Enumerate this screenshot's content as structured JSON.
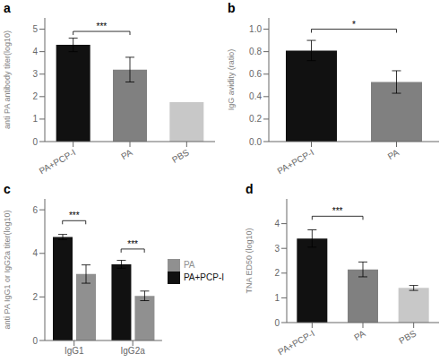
{
  "chart_data": [
    {
      "type": "bar",
      "title": "a",
      "categories": [
        "PA+PCP-I",
        "PA",
        "PBS"
      ],
      "values": [
        4.3,
        3.2,
        1.75
      ],
      "errors": [
        0.3,
        0.55,
        0.0
      ],
      "colors": [
        "#111111",
        "#808080",
        "#c8c8c8"
      ],
      "ylabel": "anti PA antibody titer(log10)",
      "ylim": [
        0,
        5.5
      ],
      "yticks": [
        0,
        1,
        2,
        3,
        4,
        5
      ],
      "annotations": [
        {
          "text": "***",
          "x": [
            "PA+PCP-I",
            "PA"
          ],
          "y": 4.9
        }
      ]
    },
    {
      "type": "bar",
      "title": "b",
      "categories": [
        "PA+PCP-I",
        "PA"
      ],
      "values": [
        0.81,
        0.53
      ],
      "errors": [
        0.09,
        0.1
      ],
      "colors": [
        "#111111",
        "#808080"
      ],
      "ylabel": "IgG avidity (ratio)",
      "ylim": [
        0,
        1.1
      ],
      "yticks": [
        {
          "value": 0,
          "label": "0.0"
        },
        0.2,
        0.4,
        0.6,
        0.8,
        {
          "value": 1,
          "label": "1.0"
        }
      ],
      "annotations": [
        {
          "text": "*",
          "x": [
            "PA+PCP-I",
            "PA"
          ],
          "y": 1.0
        }
      ]
    },
    {
      "type": "bar",
      "title": "c",
      "categories": [
        "IgG1",
        "IgG2a"
      ],
      "series": [
        {
          "name": "PA+PCP-I",
          "color": "#111111",
          "values": [
            4.75,
            3.5
          ],
          "errors": [
            0.12,
            0.18
          ]
        },
        {
          "name": "PA",
          "color": "#909090",
          "values": [
            3.05,
            2.05
          ],
          "errors": [
            0.42,
            0.22
          ]
        }
      ],
      "ylabel": "anti PA IgG1 or IgG2a titer(log10)",
      "ylim": [
        0,
        6.5
      ],
      "yticks": [
        0,
        2,
        4,
        6
      ],
      "legend": "right",
      "annotations": [
        {
          "text": "***",
          "x": "IgG1",
          "y": 5.5
        },
        {
          "text": "***",
          "x": "IgG2a",
          "y": 4.2
        }
      ]
    },
    {
      "type": "bar",
      "title": "d",
      "categories": [
        "PA+PCP-I",
        "PA",
        "PBS"
      ],
      "values": [
        3.4,
        2.15,
        1.4
      ],
      "errors": [
        0.35,
        0.3,
        0.1
      ],
      "colors": [
        "#111111",
        "#808080",
        "#c8c8c8"
      ],
      "ylabel": "TNA ED50 (log10)",
      "ylim": [
        0,
        5.0
      ],
      "yticks": [
        0,
        1,
        2,
        3,
        4
      ],
      "annotations": [
        {
          "text": "***",
          "x": [
            "PA+PCP-I",
            "PA"
          ],
          "y": 4.3
        }
      ]
    }
  ]
}
